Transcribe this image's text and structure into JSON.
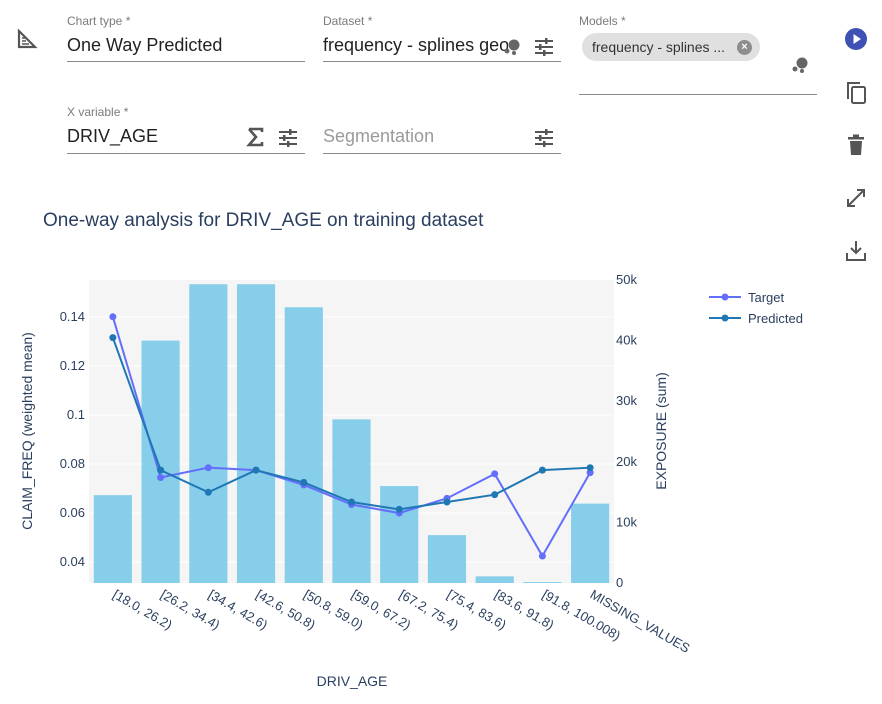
{
  "form": {
    "chart_type": {
      "label": "Chart type *",
      "value": "One Way Predicted"
    },
    "dataset": {
      "label": "Dataset *",
      "value": "frequency - splines geo"
    },
    "models": {
      "label": "Models *",
      "chip": "frequency - splines ..."
    },
    "x_variable": {
      "label": "X variable *",
      "value": "DRIV_AGE"
    },
    "segmentation": {
      "placeholder": "Segmentation"
    }
  },
  "icons": {
    "chart_type": "triangle-ruler-icon",
    "dataset_source": "data-bubbles-icon",
    "tune": "tune-sliders-icon",
    "sum": "sigma-icon",
    "run": "play-circle-icon",
    "copy": "copy-icon",
    "delete": "trash-icon",
    "expand": "expand-icon",
    "download": "download-icon"
  },
  "colors": {
    "accent": "#3f51b5",
    "bar": "#87ceeb",
    "target": "#636efa",
    "predicted": "#1f77b4",
    "plot_bg": "#f5f5f5"
  },
  "chart_data": {
    "type": "bar",
    "title": "One-way analysis for DRIV_AGE on training dataset",
    "xlabel": "DRIV_AGE",
    "ylabel": "CLAIM_FREQ (weighted mean)",
    "y2label": "EXPOSURE (sum)",
    "categories": [
      "[18.0, 26.2)",
      "[26.2, 34.4)",
      "[34.4, 42.6)",
      "[42.6, 50.8)",
      "[50.8, 59.0)",
      "[59.0, 67.2)",
      "[67.2, 75.4)",
      "[75.4, 83.6)",
      "[83.6, 91.8)",
      "[91.8, 100.008)",
      "MISSING_VALUES"
    ],
    "ylim": [
      0.0315,
      0.155
    ],
    "y_ticks": [
      0.04,
      0.06,
      0.08,
      0.1,
      0.12,
      0.14
    ],
    "y_tick_labels": [
      "0.04",
      "0.06",
      "0.08",
      "0.1",
      "0.12",
      "0.14"
    ],
    "y2lim": [
      0,
      50000
    ],
    "y2_ticks": [
      0,
      10000,
      20000,
      30000,
      40000,
      50000
    ],
    "y2_tick_labels": [
      "0",
      "10k",
      "20k",
      "30k",
      "40k",
      "50k"
    ],
    "legend_position": "top-right",
    "series": [
      {
        "name": "EXPOSURE",
        "type": "bar",
        "axis": "y2",
        "values": [
          14500,
          40000,
          49300,
          49300,
          45500,
          27000,
          16000,
          7900,
          1100,
          150,
          13100
        ]
      },
      {
        "name": "Target",
        "type": "line",
        "axis": "y",
        "values": [
          0.14,
          0.0745,
          0.0785,
          0.0775,
          0.0715,
          0.0635,
          0.06,
          0.066,
          0.076,
          0.0425,
          0.0765
        ]
      },
      {
        "name": "Predicted",
        "type": "line",
        "axis": "y",
        "values": [
          0.1315,
          0.0775,
          0.0685,
          0.0775,
          0.0725,
          0.0645,
          0.0615,
          0.0645,
          0.0675,
          0.0775,
          0.0785
        ]
      }
    ]
  }
}
